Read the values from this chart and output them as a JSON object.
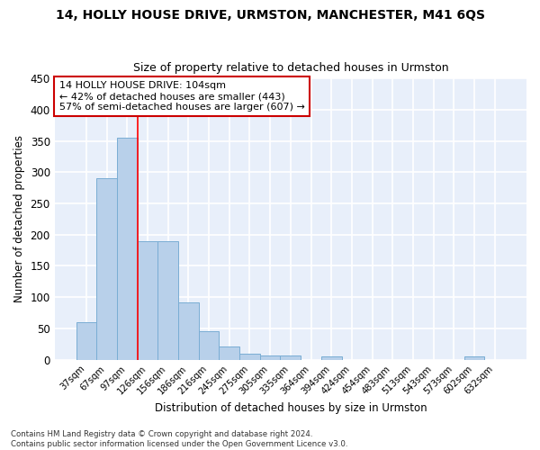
{
  "title1": "14, HOLLY HOUSE DRIVE, URMSTON, MANCHESTER, M41 6QS",
  "title2": "Size of property relative to detached houses in Urmston",
  "xlabel": "Distribution of detached houses by size in Urmston",
  "ylabel": "Number of detached properties",
  "bin_labels": [
    "37sqm",
    "67sqm",
    "97sqm",
    "126sqm",
    "156sqm",
    "186sqm",
    "216sqm",
    "245sqm",
    "275sqm",
    "305sqm",
    "335sqm",
    "364sqm",
    "394sqm",
    "424sqm",
    "454sqm",
    "483sqm",
    "513sqm",
    "543sqm",
    "573sqm",
    "602sqm",
    "632sqm"
  ],
  "bar_values": [
    60,
    291,
    355,
    190,
    190,
    92,
    46,
    21,
    9,
    6,
    6,
    0,
    5,
    0,
    0,
    0,
    0,
    0,
    0,
    5,
    0
  ],
  "bar_color": "#b8d0ea",
  "bar_edge_color": "#7aadd4",
  "bg_color": "#e8effa",
  "fig_bg_color": "#ffffff",
  "grid_color": "#ffffff",
  "annotation_text": "14 HOLLY HOUSE DRIVE: 104sqm\n← 42% of detached houses are smaller (443)\n57% of semi-detached houses are larger (607) →",
  "annotation_box_color": "#ffffff",
  "annotation_border_color": "#cc0000",
  "footnote": "Contains HM Land Registry data © Crown copyright and database right 2024.\nContains public sector information licensed under the Open Government Licence v3.0.",
  "ylim": [
    0,
    450
  ],
  "yticks": [
    0,
    50,
    100,
    150,
    200,
    250,
    300,
    350,
    400,
    450
  ],
  "red_line_index": 2.5
}
